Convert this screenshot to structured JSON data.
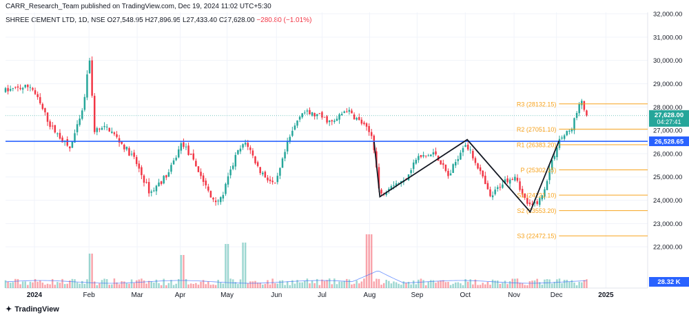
{
  "header": {
    "published": "CARR_Research_Team published on TradingView.com, Dec 19, 2024 11:02 UTC+5:30",
    "symbol": "SHREE CEMENT LTD, 1D, NSE",
    "o": "O27,548.95",
    "h": "H27,896.95",
    "l": "L27,433.40",
    "c": "C27,628.00",
    "change": "−280.80 (−1.01%)"
  },
  "footer": {
    "brand": "TradingView"
  },
  "colors": {
    "up": "#26a69a",
    "down": "#f23645",
    "pivot": "#f7a21b",
    "blue_line": "#2962ff"
  },
  "price_tags": {
    "last": "27,628.00",
    "countdown": "04:27:41",
    "level": "26,528.65",
    "volume": "28.32 K"
  },
  "chart_data": {
    "type": "candlestick",
    "x_labels": [
      "2024",
      "Feb",
      "Mar",
      "Apr",
      "May",
      "Jun",
      "Jul",
      "Aug",
      "Sep",
      "Oct",
      "Nov",
      "Dec",
      "2025"
    ],
    "y_ticks": [
      "32,000.00",
      "31,000.00",
      "30,000.00",
      "29,000.00",
      "28,000.00",
      "27,000.00",
      "26,000.00",
      "25,000.00",
      "24,000.00",
      "23,000.00",
      "22,000.00"
    ],
    "ylim": [
      21000,
      32000
    ],
    "horizontal_level": 26528.65,
    "pivot_levels": [
      {
        "label": "R3 (28132.15)",
        "value": 28132.15
      },
      {
        "label": "R2 (27051.10)",
        "value": 27051.1
      },
      {
        "label": "R1 (26383.20)",
        "value": 26383.2
      },
      {
        "label": "P (25302.15)",
        "value": 25302.15
      },
      {
        "label": "S1 (24221.10)",
        "value": 24221.1
      },
      {
        "label": "S2 (23553.20)",
        "value": 23553.2
      },
      {
        "label": "S3 (22472.15)",
        "value": 22472.15
      }
    ],
    "pattern_points": [
      [
        0.574,
        26500
      ],
      [
        0.583,
        24150
      ],
      [
        0.719,
        26600
      ],
      [
        0.817,
        23500
      ],
      [
        0.862,
        26550
      ]
    ],
    "anchors": [
      [
        0.0,
        28700
      ],
      [
        0.04,
        28900
      ],
      [
        0.07,
        27200
      ],
      [
        0.1,
        26200
      ],
      [
        0.12,
        27800
      ],
      [
        0.133,
        30500
      ],
      [
        0.136,
        27000
      ],
      [
        0.16,
        27100
      ],
      [
        0.2,
        25800
      ],
      [
        0.225,
        24300
      ],
      [
        0.255,
        25200
      ],
      [
        0.275,
        26500
      ],
      [
        0.3,
        25300
      ],
      [
        0.32,
        24100
      ],
      [
        0.335,
        24000
      ],
      [
        0.36,
        26000
      ],
      [
        0.375,
        26500
      ],
      [
        0.395,
        25300
      ],
      [
        0.42,
        24600
      ],
      [
        0.44,
        26500
      ],
      [
        0.46,
        27800
      ],
      [
        0.49,
        27600
      ],
      [
        0.51,
        27300
      ],
      [
        0.53,
        27900
      ],
      [
        0.555,
        27300
      ],
      [
        0.572,
        26700
      ],
      [
        0.583,
        24150
      ],
      [
        0.6,
        24700
      ],
      [
        0.62,
        24800
      ],
      [
        0.64,
        25800
      ],
      [
        0.67,
        26000
      ],
      [
        0.69,
        25000
      ],
      [
        0.715,
        26500
      ],
      [
        0.735,
        25500
      ],
      [
        0.755,
        24100
      ],
      [
        0.775,
        24800
      ],
      [
        0.795,
        25100
      ],
      [
        0.805,
        24200
      ],
      [
        0.817,
        23700
      ],
      [
        0.835,
        24100
      ],
      [
        0.848,
        25400
      ],
      [
        0.862,
        26600
      ],
      [
        0.88,
        27000
      ],
      [
        0.897,
        28300
      ],
      [
        0.905,
        27628
      ]
    ]
  }
}
